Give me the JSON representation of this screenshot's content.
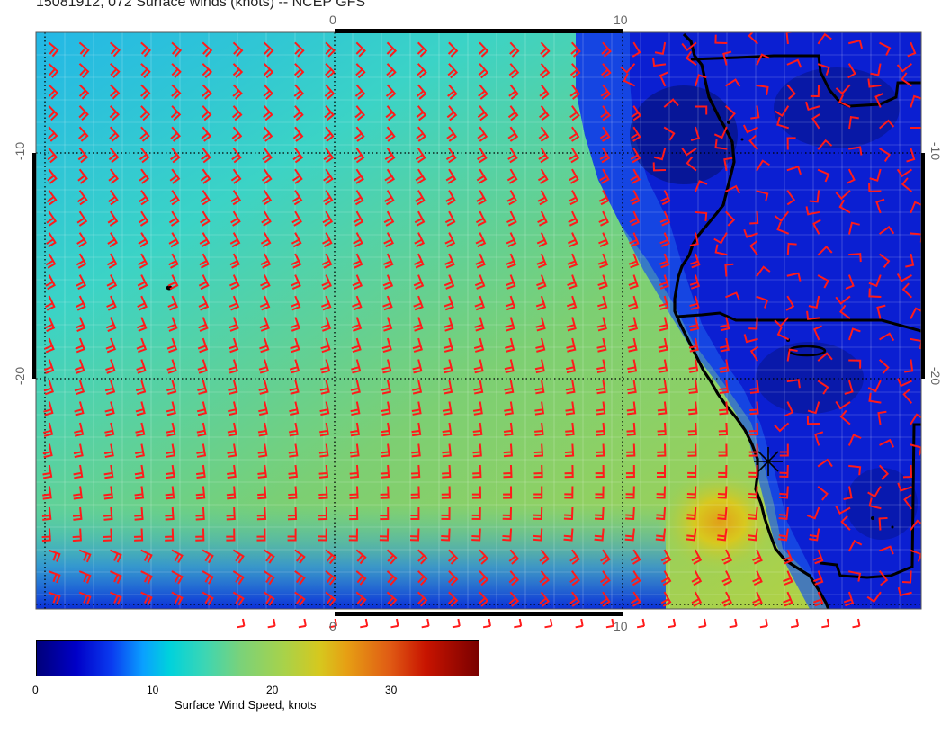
{
  "title": "15081912, 072 Surface winds (knots) -- NCEP GFS",
  "axes": {
    "top_ticks": [
      "0",
      "10"
    ],
    "bottom_ticks": [
      "0",
      "10"
    ],
    "left_ticks": [
      "-10",
      "-20"
    ],
    "right_ticks": [
      "-10",
      "-20"
    ]
  },
  "colorbar": {
    "label": "Surface Wind Speed, knots",
    "ticks": [
      "0",
      "10",
      "20",
      "30"
    ],
    "range": [
      0,
      37
    ]
  },
  "colors": {
    "coast": "#000000",
    "barb": "#ff1a1a",
    "grid": "#ffffff",
    "ocean_strong": "#7ed26a",
    "ocean_mid": "#22d3d6",
    "calm": "#0a1fd0"
  },
  "marker": {
    "name": "star-marker"
  }
}
